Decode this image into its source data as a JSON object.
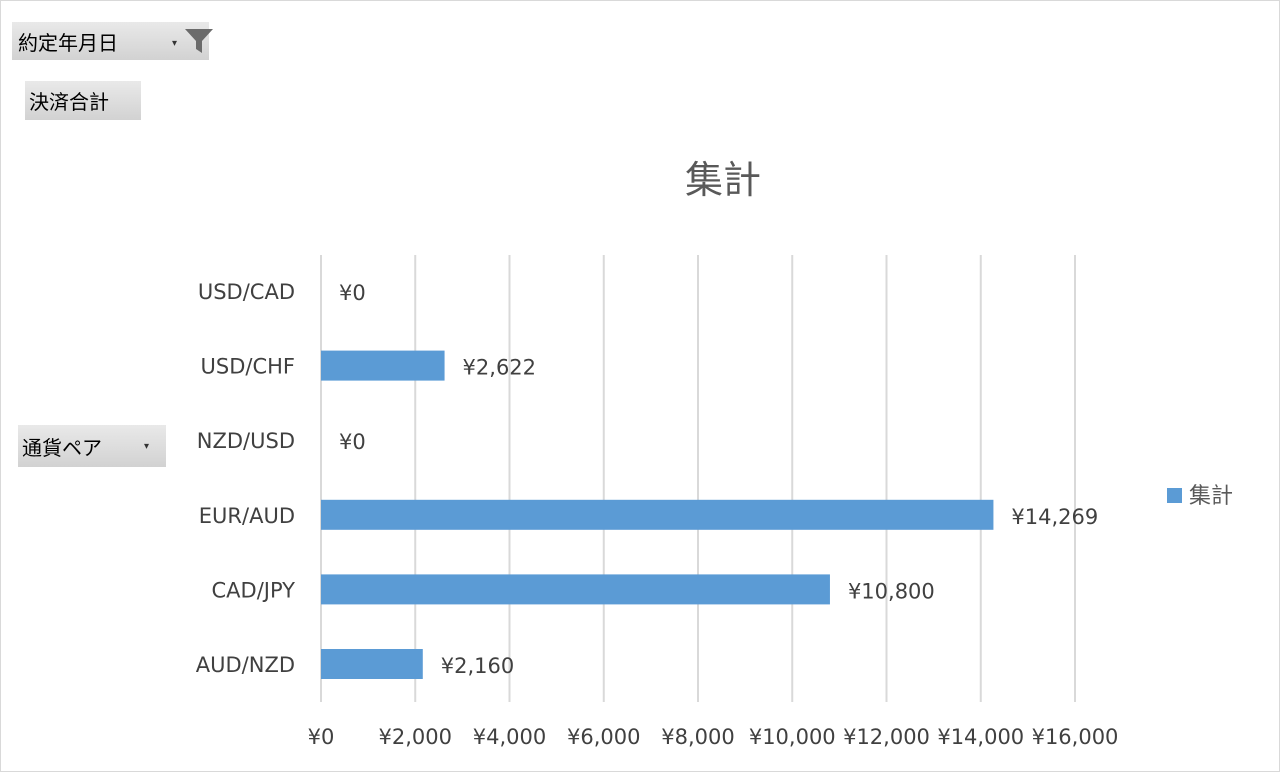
{
  "filter_button": {
    "label": "約定年月日",
    "icon": "filter-icon"
  },
  "value_button": {
    "label": "決済合計"
  },
  "row_button": {
    "label": "通貨ペア"
  },
  "colors": {
    "bar": "#5b9bd5",
    "grid": "#d9d9d9",
    "text": "#404040",
    "button_bg": "#d9d9d9"
  },
  "chart_data": {
    "type": "bar",
    "orientation": "horizontal",
    "title": "集計",
    "categories": [
      "USD/CAD",
      "USD/CHF",
      "NZD/USD",
      "EUR/AUD",
      "CAD/JPY",
      "AUD/NZD"
    ],
    "series": [
      {
        "name": "集計",
        "values": [
          0,
          2622,
          0,
          14269,
          10800,
          2160
        ],
        "data_labels": [
          "¥0",
          "¥2,622",
          "¥0",
          "¥14,269",
          "¥10,800",
          "¥2,160"
        ]
      }
    ],
    "xlim": [
      0,
      16000
    ],
    "x_ticks": [
      0,
      2000,
      4000,
      6000,
      8000,
      10000,
      12000,
      14000,
      16000
    ],
    "x_tick_labels": [
      "¥0",
      "¥2,000",
      "¥4,000",
      "¥6,000",
      "¥8,000",
      "¥10,000",
      "¥12,000",
      "¥14,000",
      "¥16,000"
    ],
    "grid": true,
    "legend_position": "right"
  }
}
